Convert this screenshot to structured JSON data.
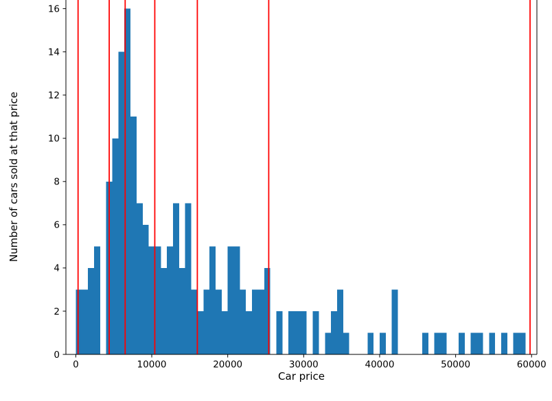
{
  "page": {
    "background": "#ffffff"
  },
  "chart_data": {
    "type": "bar",
    "subtype": "histogram",
    "title": "",
    "xlabel": "Car price",
    "ylabel": "Number of cars sold at that price",
    "bar_color": "#1f77b4",
    "axis_color": "#000000",
    "grid": false,
    "legend": false,
    "xlim": [
      -1300,
      60700
    ],
    "ylim": [
      0,
      16.4
    ],
    "bin_start": 0,
    "bin_width": 800,
    "counts": [
      3,
      3,
      4,
      5,
      0,
      8,
      10,
      14,
      16,
      11,
      7,
      6,
      5,
      5,
      4,
      5,
      7,
      4,
      7,
      3,
      2,
      3,
      5,
      3,
      2,
      5,
      5,
      3,
      2,
      3,
      3,
      4,
      0,
      2,
      0,
      2,
      2,
      2,
      0,
      2,
      0,
      1,
      2,
      3,
      1,
      0,
      0,
      0,
      1,
      0,
      1,
      0,
      3,
      0,
      0,
      0,
      0,
      1,
      0,
      1,
      1,
      0,
      0,
      1,
      0,
      1,
      1,
      0,
      1,
      0,
      1,
      0,
      1,
      1
    ],
    "xticks": [
      {
        "value": 0,
        "label": "0"
      },
      {
        "value": 10000,
        "label": "10000"
      },
      {
        "value": 20000,
        "label": "20000"
      },
      {
        "value": 30000,
        "label": "30000"
      },
      {
        "value": 40000,
        "label": "40000"
      },
      {
        "value": 50000,
        "label": "50000"
      },
      {
        "value": 60000,
        "label": "60000"
      }
    ],
    "yticks": [
      {
        "value": 0,
        "label": "0"
      },
      {
        "value": 2,
        "label": "2"
      },
      {
        "value": 4,
        "label": "4"
      },
      {
        "value": 6,
        "label": "6"
      },
      {
        "value": 8,
        "label": "8"
      },
      {
        "value": 10,
        "label": "10"
      },
      {
        "value": 12,
        "label": "12"
      },
      {
        "value": 14,
        "label": "14"
      },
      {
        "value": 16,
        "label": "16"
      }
    ],
    "vlines": {
      "color": "#ff0000",
      "x": [
        300,
        4400,
        6500,
        10400,
        16000,
        25400,
        59800
      ]
    }
  }
}
